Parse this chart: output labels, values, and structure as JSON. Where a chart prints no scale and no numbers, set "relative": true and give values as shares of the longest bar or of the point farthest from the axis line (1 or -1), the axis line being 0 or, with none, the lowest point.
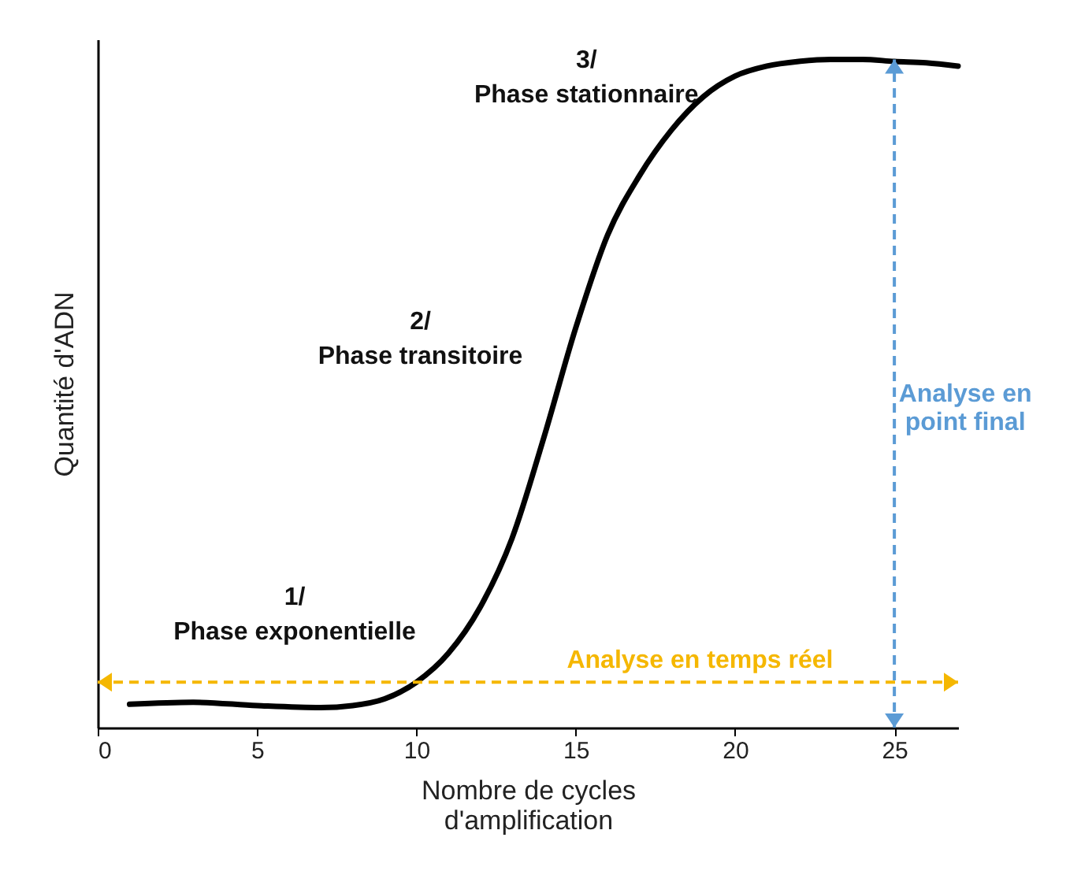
{
  "chart_data": {
    "type": "line",
    "xlabel": "Nombre de cycles\nd'amplification",
    "ylabel": "Quantité d'ADN",
    "relative": true,
    "xlim": [
      0,
      27
    ],
    "xticks": [
      0,
      5,
      10,
      15,
      20,
      25
    ],
    "grid": false,
    "marker": "none",
    "line_style": "solid",
    "x": [
      1,
      3,
      5,
      7,
      8,
      9,
      10,
      11,
      12,
      13,
      14,
      15,
      16,
      17,
      18,
      19,
      20,
      21,
      22,
      23,
      24,
      25,
      26,
      27
    ],
    "series": [
      {
        "color": "#000000",
        "values": [
          0.035,
          0.038,
          0.033,
          0.03,
          0.033,
          0.043,
          0.068,
          0.111,
          0.18,
          0.283,
          0.434,
          0.598,
          0.737,
          0.826,
          0.894,
          0.944,
          0.975,
          0.99,
          0.997,
          1,
          1,
          0.997,
          0.995,
          0.99
        ]
      }
    ],
    "ref_lines": [
      {
        "axis": "y",
        "value": 0.068,
        "label": "Analyse en temps réel",
        "color": "#f5b700",
        "line_style": "dashed"
      },
      {
        "axis": "x",
        "value": 25,
        "label": "Analyse en\npoint final",
        "color": "#5b9bd5",
        "line_style": "dashed"
      }
    ],
    "annotations": [
      "1/\nPhase exponentielle",
      "2/\nPhase transitoire",
      "3/\nPhase stationnaire"
    ]
  }
}
